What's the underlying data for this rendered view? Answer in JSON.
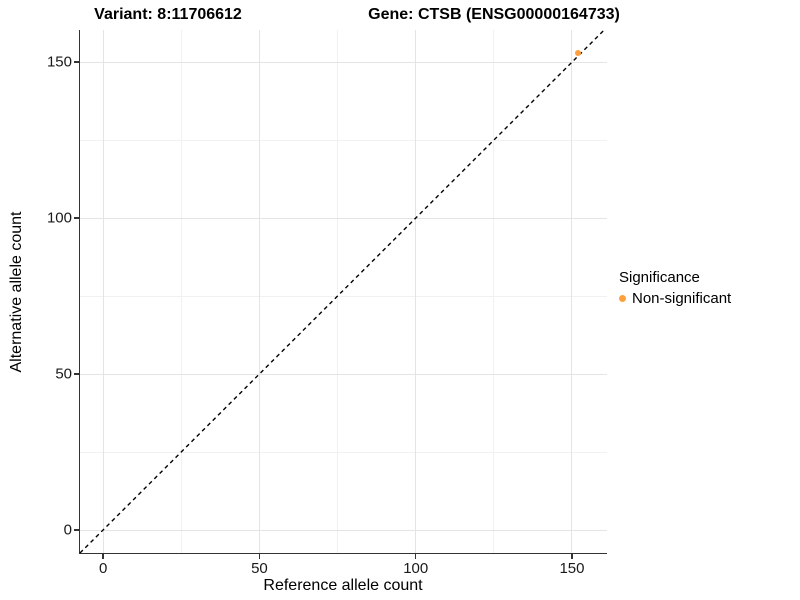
{
  "chart_data": {
    "type": "scatter",
    "title_left": "Variant: 8:11706612",
    "title_right": "Gene: CTSB (ENSG00000164733)",
    "xlabel": "Reference allele count",
    "ylabel": "Alternative allele count",
    "x_ticks": [
      0,
      50,
      100,
      150
    ],
    "y_ticks": [
      0,
      50,
      100,
      150
    ],
    "x_minor": [
      25,
      75,
      125
    ],
    "y_minor": [
      25,
      75,
      125
    ],
    "xlim": [
      -7.4,
      161.2
    ],
    "ylim": [
      -7.4,
      160.3
    ],
    "grid": true,
    "points": [
      {
        "x": 152,
        "y": 153,
        "series": "Non-significant",
        "color": "#FFA03C"
      }
    ],
    "reference_line": {
      "slope": 1,
      "intercept": 0,
      "style": "dashed",
      "color": "#000000"
    },
    "legend": {
      "position": "right",
      "title": "Significance",
      "entries": [
        {
          "label": "Non-significant",
          "color": "#FFA03C"
        }
      ]
    }
  }
}
